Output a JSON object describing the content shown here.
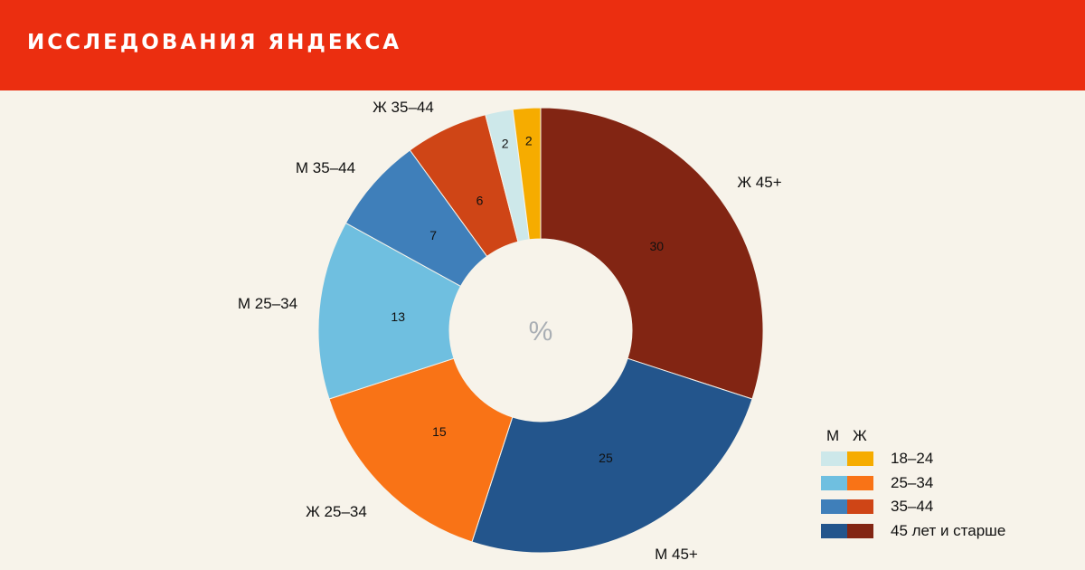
{
  "header": {
    "title": "ИССЛЕДОВАНИЯ ЯНДЕКСА"
  },
  "chart_data": {
    "type": "pie",
    "center_label": "%",
    "slices": [
      {
        "label": "Ж 45+",
        "value": 30,
        "color": "#822513"
      },
      {
        "label": "М 45+",
        "value": 25,
        "color": "#23558c"
      },
      {
        "label": "Ж 25–34",
        "value": 15,
        "color": "#f97316"
      },
      {
        "label": "М 25–34",
        "value": 13,
        "color": "#6fbfe0"
      },
      {
        "label": "М 35–44",
        "value": 7,
        "color": "#3f7fba"
      },
      {
        "label": "Ж 35–44",
        "value": 6,
        "color": "#cf4516"
      },
      {
        "label": "",
        "value": 2,
        "color": "#cde8ea"
      },
      {
        "label": "",
        "value": 2,
        "color": "#f6ac00"
      }
    ],
    "legend": {
      "headers": [
        "М",
        "Ж"
      ],
      "rows": [
        {
          "label": "18–24",
          "male_color": "#cde8ea",
          "female_color": "#f6ac00"
        },
        {
          "label": "25–34",
          "male_color": "#6fbfe0",
          "female_color": "#f97316"
        },
        {
          "label": "35–44",
          "male_color": "#3f7fba",
          "female_color": "#cf4516"
        },
        {
          "label": "45 лет и старше",
          "male_color": "#23558c",
          "female_color": "#822513"
        }
      ]
    }
  }
}
